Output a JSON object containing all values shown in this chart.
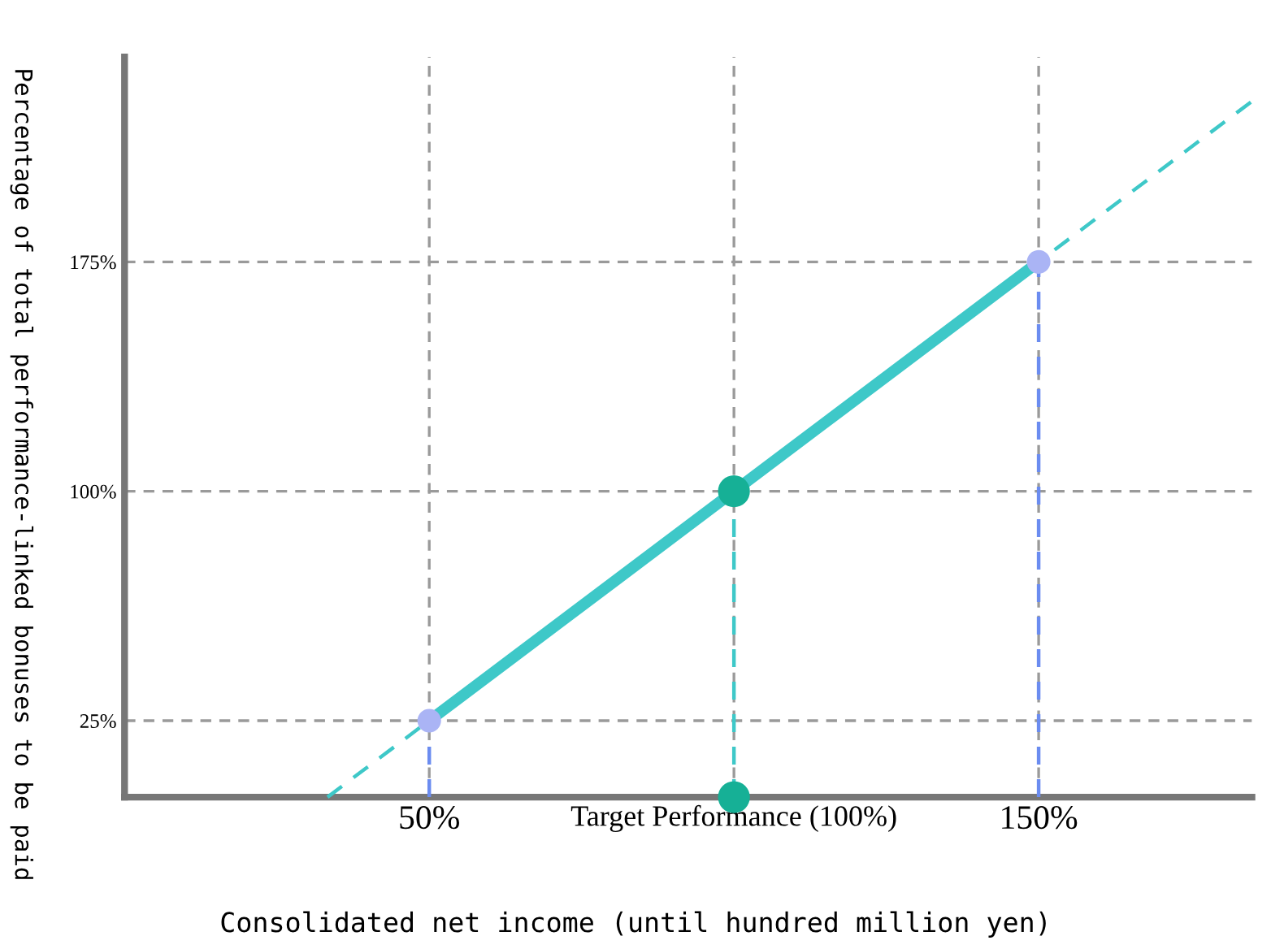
{
  "chart_data": {
    "type": "line",
    "xlabel": "Consolidated net income (until hundred million yen)",
    "ylabel": "Percentage of total performance-linked bonuses to be paid",
    "xlim": [
      0,
      185
    ],
    "ylim": [
      0,
      242
    ],
    "xticks": [
      {
        "value": 50,
        "label": "50%"
      },
      {
        "value": 100,
        "label": "Target Performance (100%)"
      },
      {
        "value": 150,
        "label": "150%"
      }
    ],
    "yticks": [
      {
        "value": 25,
        "label": "25%"
      },
      {
        "value": 100,
        "label": "100%"
      },
      {
        "value": 175,
        "label": "175%"
      }
    ],
    "grid": true,
    "series": [
      {
        "line_style": "dashed",
        "color": "#3ec8c8",
        "x": [
          33.3,
          185
        ],
        "values": [
          0,
          227.5
        ]
      },
      {
        "line_style": "solid",
        "color": "#3ec8c8",
        "x": [
          50,
          150
        ],
        "values": [
          25,
          175
        ]
      },
      {
        "type": "line",
        "line_style": "dashed",
        "color": "#6b8cf0",
        "x": [
          50,
          50
        ],
        "values": [
          0,
          25
        ]
      },
      {
        "type": "line",
        "line_style": "dashed",
        "color": "#3ec8c8",
        "x": [
          100,
          100
        ],
        "values": [
          0,
          100
        ]
      },
      {
        "type": "line",
        "line_style": "dashed",
        "color": "#6b8cf0",
        "x": [
          150,
          150
        ],
        "values": [
          0,
          175
        ]
      },
      {
        "type": "scatter",
        "marker": "circle",
        "color": "#aab4f5",
        "x": [
          50,
          150
        ],
        "values": [
          25,
          175
        ]
      },
      {
        "type": "scatter",
        "marker": "circle",
        "color": "#16b096",
        "x": [
          100,
          100
        ],
        "values": [
          100,
          0
        ]
      }
    ]
  }
}
